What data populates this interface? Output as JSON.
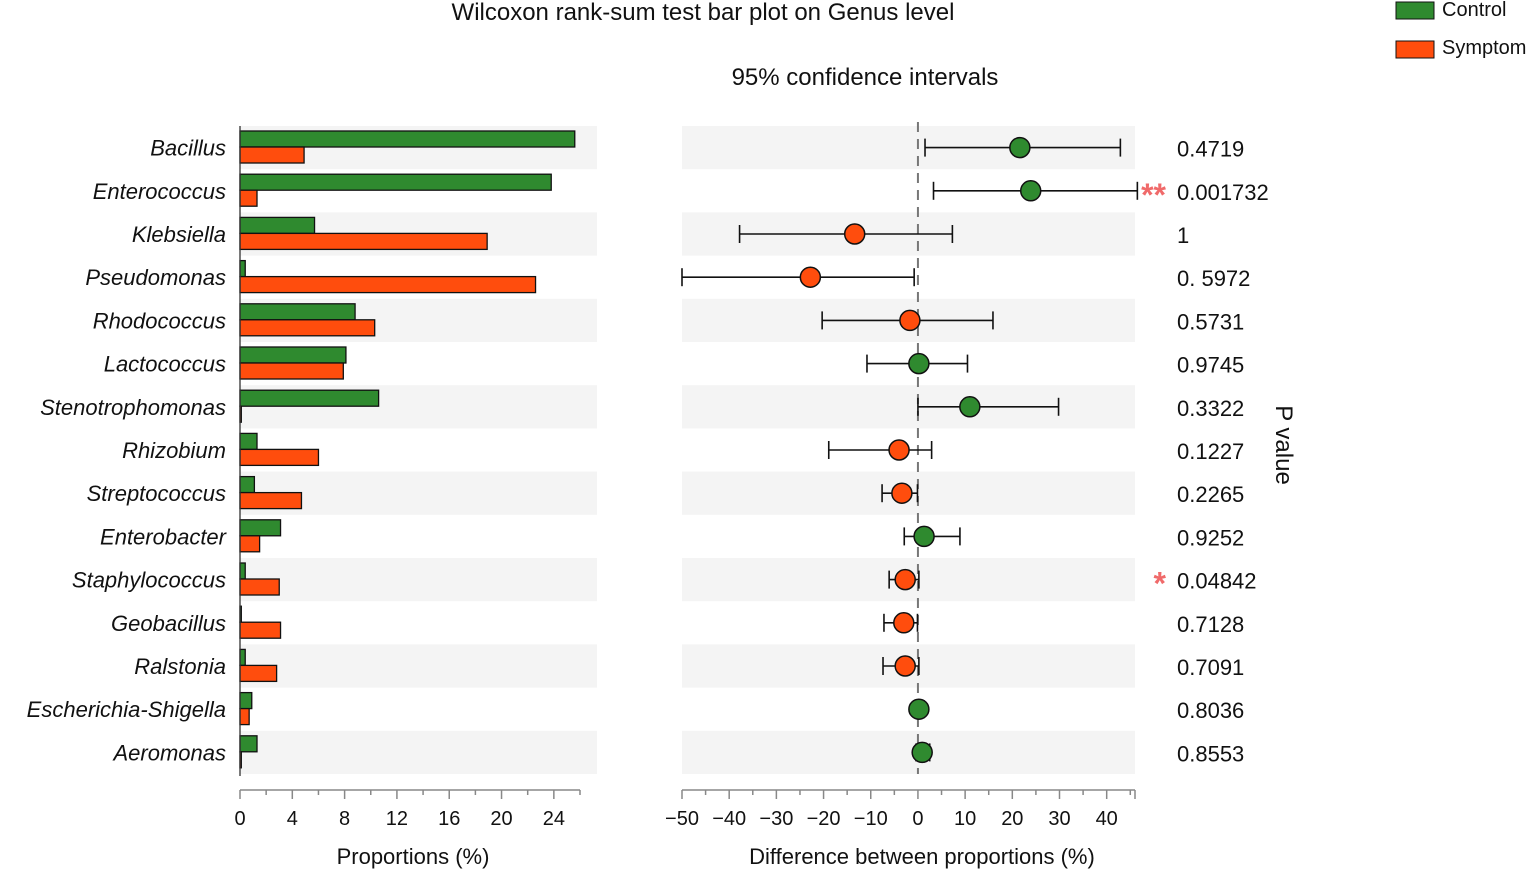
{
  "title": "Wilcoxon rank-sum test bar plot on Genus level",
  "ci_title": "95% confidence intervals",
  "legend": [
    {
      "label": "Control",
      "color": "#2f8a2f"
    },
    {
      "label": "Symptom",
      "color": "#ff4d0d"
    }
  ],
  "colors": {
    "control": "#2f8a2f",
    "symptom": "#ff4d0d",
    "stripe": "#f4f4f4",
    "star": "#f06a6a"
  },
  "chart_data": [
    {
      "type": "bar",
      "orientation": "horizontal",
      "categories": [
        "Bacillus",
        "Enterococcus",
        "Klebsiella",
        "Pseudomonas",
        "Rhodococcus",
        "Lactococcus",
        "Stenotrophomonas",
        "Rhizobium",
        "Streptococcus",
        "Enterobacter",
        "Staphylococcus",
        "Geobacillus",
        "Ralstonia",
        "Escherichia-Shigella",
        "Aeromonas"
      ],
      "series": [
        {
          "name": "Control",
          "values": [
            25.6,
            23.8,
            5.7,
            0.4,
            8.8,
            8.1,
            10.6,
            1.3,
            1.1,
            3.1,
            0.4,
            0.1,
            0.4,
            0.9,
            1.3
          ]
        },
        {
          "name": "Symptom",
          "values": [
            4.9,
            1.3,
            18.9,
            22.6,
            10.3,
            7.9,
            0.1,
            6.0,
            4.7,
            1.5,
            3.0,
            3.1,
            2.8,
            0.7,
            0.1
          ]
        }
      ],
      "xlabel": "Proportions (%)",
      "xlim": [
        0,
        26
      ],
      "xticks": [
        "0",
        "4",
        "8",
        "12",
        "16",
        "20",
        "24"
      ]
    },
    {
      "type": "scatter",
      "subtype": "confidence-interval",
      "categories": [
        "Bacillus",
        "Enterococcus",
        "Klebsiella",
        "Pseudomonas",
        "Rhodococcus",
        "Lactococcus",
        "Stenotrophomonas",
        "Rhizobium",
        "Streptococcus",
        "Enterobacter",
        "Staphylococcus",
        "Geobacillus",
        "Ralstonia",
        "Escherichia-Shigella",
        "Aeromonas"
      ],
      "estimate": [
        21.6,
        23.9,
        -13.4,
        -22.8,
        -1.7,
        0.2,
        11.0,
        -4.0,
        -3.4,
        1.3,
        -2.7,
        -3.0,
        -2.7,
        0.2,
        0.9
      ],
      "lower": [
        1.5,
        3.3,
        -37.8,
        -50.0,
        -20.3,
        -10.8,
        0.0,
        -18.9,
        -7.6,
        -2.9,
        -6.1,
        -7.2,
        -7.4,
        -0.8,
        -0.4
      ],
      "upper": [
        42.9,
        46.5,
        7.3,
        -0.8,
        15.9,
        10.5,
        29.8,
        2.9,
        -0.1,
        8.9,
        0.2,
        -0.1,
        0.2,
        1.3,
        2.5
      ],
      "enriched": [
        "Control",
        "Control",
        "Symptom",
        "Symptom",
        "Symptom",
        "Control",
        "Control",
        "Symptom",
        "Symptom",
        "Control",
        "Symptom",
        "Symptom",
        "Symptom",
        "Control",
        "Control"
      ],
      "xlabel": "Difference between proportions (%)",
      "xlim": [
        -50,
        46
      ],
      "xticks": [
        "−50",
        "−40",
        "−30",
        "−20",
        "−10",
        "0",
        "10",
        "20",
        "30",
        "40"
      ]
    }
  ],
  "p_values": [
    "0.4719",
    "0.001732",
    "1",
    "0. 5972",
    "0.5731",
    "0.9745",
    "0.3322",
    "0.1227",
    "0.2265",
    "0.9252",
    "0.04842",
    "0.7128",
    "0.7091",
    "0.8036",
    "0.8553"
  ],
  "significance": [
    "",
    "**",
    "",
    "",
    "",
    "",
    "",
    "",
    "",
    "",
    "*",
    "",
    "",
    "",
    ""
  ],
  "p_axis_label": "P value"
}
